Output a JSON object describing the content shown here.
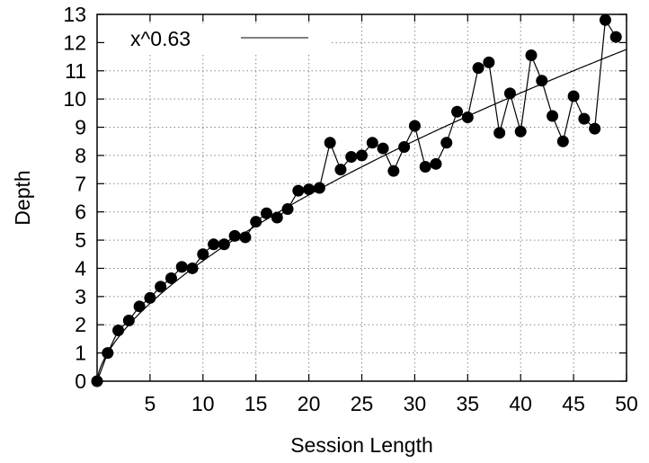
{
  "chart_data": {
    "type": "line",
    "xlabel": "Session Length",
    "ylabel": "Depth",
    "xlim": [
      0,
      50
    ],
    "ylim": [
      0,
      13
    ],
    "xticks": [
      5,
      10,
      15,
      20,
      25,
      30,
      35,
      40,
      45,
      50
    ],
    "yticks": [
      0,
      1,
      2,
      3,
      4,
      5,
      6,
      7,
      8,
      9,
      10,
      11,
      12,
      13
    ],
    "grid": true,
    "legend_position": "top-left",
    "series": [
      {
        "name": "",
        "style": "line-with-markers",
        "color": "#000000",
        "x": [
          0,
          1,
          2,
          3,
          4,
          5,
          6,
          7,
          8,
          9,
          10,
          11,
          12,
          13,
          14,
          15,
          16,
          17,
          18,
          19,
          20,
          21,
          22,
          23,
          24,
          25,
          26,
          27,
          28,
          29,
          30,
          31,
          32,
          33,
          34,
          35,
          36,
          37,
          38,
          39,
          40,
          41,
          42,
          43,
          44,
          45,
          46,
          47,
          48,
          49
        ],
        "y": [
          0.0,
          1.0,
          1.8,
          2.15,
          2.65,
          2.95,
          3.35,
          3.65,
          4.05,
          4.0,
          4.5,
          4.85,
          4.85,
          5.15,
          5.1,
          5.65,
          5.95,
          5.8,
          6.1,
          6.75,
          6.8,
          6.85,
          8.45,
          7.5,
          7.95,
          8.0,
          8.45,
          8.25,
          7.45,
          8.3,
          9.05,
          7.6,
          7.7,
          8.45,
          9.55,
          9.35,
          11.1,
          11.3,
          8.8,
          10.2,
          8.85,
          11.55,
          10.65,
          9.4,
          8.5,
          10.1,
          9.3,
          8.95,
          12.8,
          12.2
        ]
      },
      {
        "name": "x^0.63",
        "style": "line",
        "color": "#000000",
        "formula": "x^0.63"
      }
    ]
  }
}
